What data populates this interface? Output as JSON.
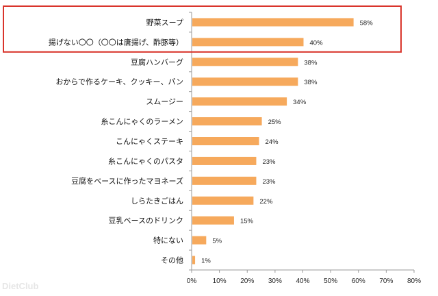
{
  "chart_data": {
    "type": "bar",
    "orientation": "horizontal",
    "categories": [
      "野菜スープ",
      "揚げない〇〇（〇〇は唐揚げ、酢豚等）",
      "豆腐ハンバーグ",
      "おからで作るケーキ、クッキー、パン",
      "スムージー",
      "糸こんにゃくのラーメン",
      "こんにゃくステーキ",
      "糸こんにゃくのパスタ",
      "豆腐をベースに作ったマヨネーズ",
      "しらたきごはん",
      "豆乳ベースのドリンク",
      "特にない",
      "その他"
    ],
    "values": [
      58,
      40,
      38,
      38,
      34,
      25,
      24,
      23,
      23,
      22,
      15,
      5,
      1
    ],
    "value_labels": [
      "58%",
      "40%",
      "38%",
      "38%",
      "34%",
      "25%",
      "24%",
      "23%",
      "23%",
      "22%",
      "15%",
      "5%",
      "1%"
    ],
    "xlim": [
      0,
      80
    ],
    "xticks": [
      "0%",
      "10%",
      "20%",
      "30%",
      "40%",
      "50%",
      "60%",
      "70%",
      "80%"
    ],
    "title": "",
    "xlabel": "",
    "ylabel": "",
    "highlight": {
      "categories": [
        0,
        1
      ],
      "color": "#d9342b"
    },
    "bar_color": "#f6a95c",
    "grid": false
  },
  "watermark": "DietClub"
}
